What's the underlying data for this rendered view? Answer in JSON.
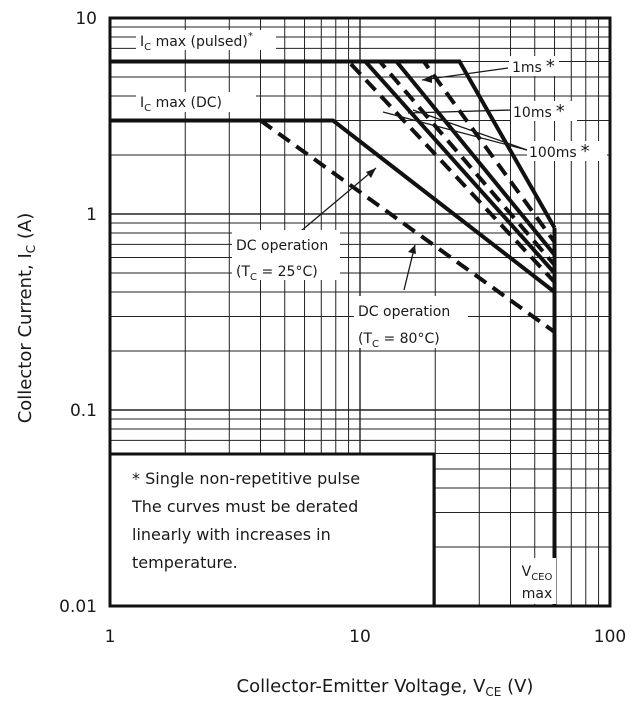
{
  "chart_data": {
    "type": "line",
    "xscale": "log",
    "yscale": "log",
    "xlim": [
      1,
      100
    ],
    "ylim": [
      0.01,
      10
    ],
    "grid": true,
    "xlabel_parts": [
      "Collector-Emitter Voltage, V",
      "CE",
      " (V)"
    ],
    "ylabel_parts": [
      "Collector Current, I",
      "C",
      " (A)"
    ],
    "x_ticks": [
      {
        "value": 1,
        "label": "1"
      },
      {
        "value": 10,
        "label": "10"
      },
      {
        "value": 100,
        "label": "100"
      }
    ],
    "y_ticks": [
      {
        "value": 0.01,
        "label": "0.01"
      },
      {
        "value": 0.1,
        "label": "0.1"
      },
      {
        "value": 1,
        "label": "1"
      },
      {
        "value": 10,
        "label": "10"
      }
    ],
    "series": [
      {
        "style": "solid",
        "points": [
          [
            1,
            6
          ],
          [
            25,
            6
          ],
          [
            60,
            0.85
          ]
        ]
      },
      {
        "style": "dashed",
        "points": [
          [
            1,
            6
          ],
          [
            18,
            6
          ],
          [
            60,
            0.72
          ]
        ]
      },
      {
        "style": "solid",
        "points": [
          [
            1,
            6
          ],
          [
            14,
            6
          ],
          [
            60,
            0.62
          ]
        ]
      },
      {
        "style": "dashed",
        "points": [
          [
            1,
            6
          ],
          [
            12,
            6
          ],
          [
            60,
            0.55
          ]
        ]
      },
      {
        "style": "solid",
        "points": [
          [
            1,
            6
          ],
          [
            10.5,
            6
          ],
          [
            60,
            0.5
          ]
        ]
      },
      {
        "style": "dashed",
        "points": [
          [
            1,
            6
          ],
          [
            9,
            6
          ],
          [
            60,
            0.45
          ]
        ]
      },
      {
        "style": "solid",
        "points": [
          [
            1,
            3
          ],
          [
            7.8,
            3
          ],
          [
            60,
            0.4
          ]
        ]
      },
      {
        "style": "dashed",
        "points": [
          [
            4,
            3
          ],
          [
            60,
            0.25
          ]
        ]
      },
      {
        "style": "solid",
        "points": [
          [
            60,
            0.01
          ],
          [
            60,
            0.85
          ]
        ]
      }
    ],
    "annotations": [
      {
        "id": "ic-max-pulsed",
        "parts": [
          "I",
          "C",
          " max (pulsed)"
        ],
        "sup": "*"
      },
      {
        "id": "ic-max-dc",
        "parts": [
          "I",
          "C",
          " max (DC)"
        ]
      },
      {
        "id": "pulse-1ms",
        "text": "1ms",
        "star": "*"
      },
      {
        "id": "pulse-10ms",
        "text": "10ms",
        "star": "*"
      },
      {
        "id": "pulse-100ms",
        "text": "100ms",
        "star": "*"
      },
      {
        "id": "dc-25-title",
        "text": "DC operation"
      },
      {
        "id": "dc-25-temp",
        "parts": [
          "(T",
          "C",
          " = 25°C)"
        ]
      },
      {
        "id": "dc-80-title",
        "text": "DC operation"
      },
      {
        "id": "dc-80-temp",
        "parts": [
          "(T",
          "C",
          " = 80°C)"
        ]
      },
      {
        "id": "vceo-max",
        "parts": [
          "V",
          "CEO",
          "max"
        ]
      }
    ],
    "note": [
      "* Single non-repetitive pulse",
      "The curves must be derated",
      "linearly with increases in",
      "temperature."
    ]
  }
}
